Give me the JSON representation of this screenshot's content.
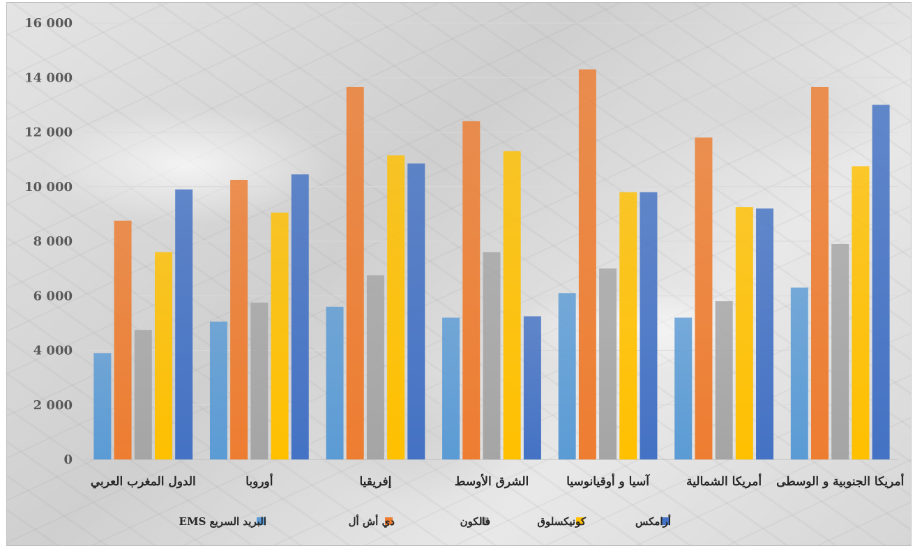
{
  "chart_data": {
    "type": "bar",
    "title": "",
    "xlabel": "",
    "ylabel": "",
    "ylim": [
      0,
      16000
    ],
    "yticks": [
      0,
      2000,
      4000,
      6000,
      8000,
      10000,
      12000,
      14000,
      16000
    ],
    "ytick_labels": [
      "0",
      "2 000",
      "4 000",
      "6 000",
      "8 000",
      "10 000",
      "12 000",
      "14 000",
      "16 000"
    ],
    "grid": true,
    "legend_position": "bottom",
    "categories": [
      "الدول المغرب العربي",
      "أوروبا",
      "إفريقيا",
      "الشرق الأوسط",
      "آسيا و أوقيانوسيا",
      "أمريكا الشمالية",
      "أمريكا الجنوبية و الوسطى"
    ],
    "series": [
      {
        "name": "البريد السريع EMS",
        "color": "#5b9bd5",
        "values": [
          3900,
          5050,
          5600,
          5200,
          6100,
          5200,
          6300
        ]
      },
      {
        "name": "دي أش أل",
        "color": "#ed7d31",
        "values": [
          8750,
          10250,
          13650,
          12400,
          14300,
          11800,
          13650
        ]
      },
      {
        "name": "فالكون",
        "color": "#a5a5a5",
        "values": [
          4750,
          5750,
          6750,
          7600,
          7000,
          5800,
          7900
        ]
      },
      {
        "name": "كونيكسلوق",
        "color": "#ffc000",
        "values": [
          7600,
          9050,
          11150,
          11300,
          9800,
          9250,
          10750
        ]
      },
      {
        "name": "أرامكس",
        "color": "#4472c4",
        "values": [
          9900,
          10450,
          10850,
          5250,
          9800,
          9200,
          13000
        ]
      }
    ]
  }
}
